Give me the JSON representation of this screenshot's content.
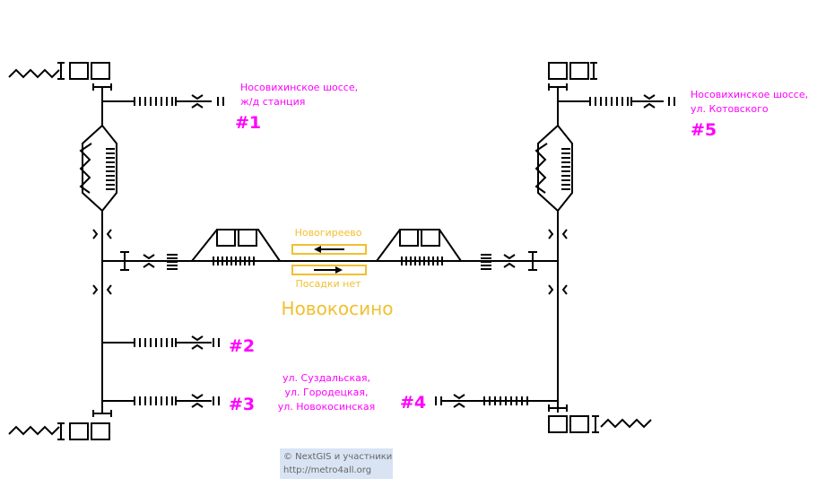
{
  "station": {
    "name": "Новокосино",
    "direction_top": "Новогиреево",
    "direction_bottom": "Посадки нет"
  },
  "exits": [
    {
      "number": "#1",
      "lines": [
        "Носовихинское шоссе,",
        "ж/д станция"
      ]
    },
    {
      "number": "#2",
      "lines": []
    },
    {
      "number": "#3",
      "lines": []
    },
    {
      "number": "#4",
      "lines": [
        "ул. Суздальская,",
        "ул. Городецкая,",
        "ул. Новокосинская"
      ]
    },
    {
      "number": "#5",
      "lines": [
        "Носовихинское шоссе,",
        "ул. Котовского"
      ]
    }
  ],
  "credit": {
    "line1": "© NextGIS и участники",
    "line2": "http://metro4all.org"
  },
  "colors": {
    "line": "#000000",
    "exit_text": "#ff00ff",
    "station_text": "#f0c030",
    "credit_bg": "#d8e4f4"
  }
}
